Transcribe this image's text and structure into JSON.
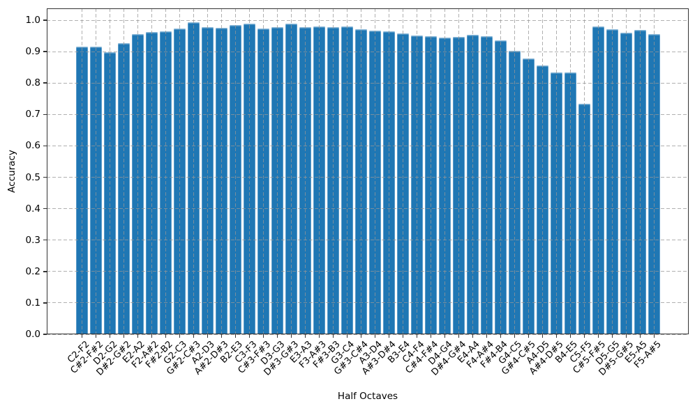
{
  "chart_data": {
    "type": "bar",
    "xlabel": "Half Octaves",
    "ylabel": "Accuracy",
    "ylim": [
      0.0,
      1.0
    ],
    "ytick_labels": [
      "0.0",
      "0.1",
      "0.2",
      "0.3",
      "0.4",
      "0.5",
      "0.6",
      "0.7",
      "0.8",
      "0.9",
      "1.0"
    ],
    "grid": "dashed-both-axes",
    "legend": "none",
    "bar_color": "#1f77b4",
    "grid_color": "#b0b0b0",
    "spine_color": "#333333",
    "categories": [
      "C2-F2",
      "C#2-F#2",
      "D2-G2",
      "D#2-G#2",
      "E2-A2",
      "F2-A#2",
      "F#2-B2",
      "G2-C3",
      "G#2-C#3",
      "A2-D3",
      "A#2-D#3",
      "B2-E3",
      "C3-F3",
      "C#3-F#3",
      "D3-G3",
      "D#3-G#3",
      "E3-A3",
      "F3-A#3",
      "F#3-B3",
      "G3-C4",
      "G#3-C#4",
      "A3-D4",
      "A#3-D#4",
      "B3-E4",
      "C4-F4",
      "C#4-F#4",
      "D4-G4",
      "D#4-G#4",
      "E4-A4",
      "F4-A#4",
      "F#4-B4",
      "G4-C5",
      "G#4-C#5",
      "A4-D5",
      "A#4-D#5",
      "B4-E5",
      "C5-F5",
      "C#5-F#5",
      "D5-G5",
      "D#5-G#5",
      "E5-A5",
      "F5-A#5"
    ],
    "values": [
      0.916,
      0.915,
      0.899,
      0.926,
      0.956,
      0.962,
      0.964,
      0.973,
      0.993,
      0.977,
      0.975,
      0.985,
      0.988,
      0.974,
      0.978,
      0.989,
      0.977,
      0.981,
      0.977,
      0.98,
      0.971,
      0.967,
      0.964,
      0.959,
      0.952,
      0.949,
      0.945,
      0.947,
      0.953,
      0.948,
      0.936,
      0.903,
      0.878,
      0.856,
      0.834,
      0.833,
      0.733,
      0.981,
      0.972,
      0.961,
      0.968,
      0.956
    ]
  }
}
